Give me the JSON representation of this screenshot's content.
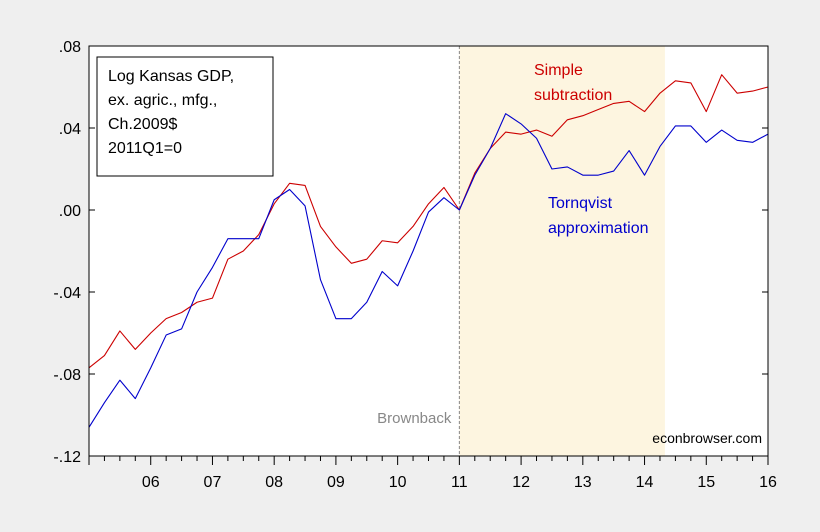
{
  "chart_data": {
    "type": "line",
    "x_unit": "quarter",
    "xlim": [
      "2005Q1",
      "2016Q1"
    ],
    "ylim": [
      -0.12,
      0.08
    ],
    "y_ticks": [
      ".08",
      ".04",
      ".00",
      "-.04",
      "-.08",
      "-.12"
    ],
    "y_tick_values": [
      0.08,
      0.04,
      0.0,
      -0.04,
      -0.08,
      -0.12
    ],
    "x_tick_labels": [
      "06",
      "07",
      "08",
      "09",
      "10",
      "11",
      "12",
      "13",
      "14",
      "15",
      "16"
    ],
    "x_tick_values": [
      2006,
      2007,
      2008,
      2009,
      2010,
      2011,
      2012,
      2013,
      2014,
      2015,
      2016
    ],
    "box_lines": [
      "Log Kansas GDP,",
      "ex. agric., mfg.,",
      "Ch.2009$",
      "2011Q1=0"
    ],
    "shade": {
      "from": "2011Q1",
      "to": "2014Q2",
      "color": "#fdf5e0"
    },
    "vline": {
      "at": "2011Q1",
      "label": "Brownback"
    },
    "watermark": "econbrowser.com",
    "colors": {
      "simple": "#cc0000",
      "tornqvist": "#0000cc",
      "vline": "#888888"
    },
    "x": [
      "2005Q1",
      "2005Q2",
      "2005Q3",
      "2005Q4",
      "2006Q1",
      "2006Q2",
      "2006Q3",
      "2006Q4",
      "2007Q1",
      "2007Q2",
      "2007Q3",
      "2007Q4",
      "2008Q1",
      "2008Q2",
      "2008Q3",
      "2008Q4",
      "2009Q1",
      "2009Q2",
      "2009Q3",
      "2009Q4",
      "2010Q1",
      "2010Q2",
      "2010Q3",
      "2010Q4",
      "2011Q1",
      "2011Q2",
      "2011Q3",
      "2011Q4",
      "2012Q1",
      "2012Q2",
      "2012Q3",
      "2012Q4",
      "2013Q1",
      "2013Q2",
      "2013Q3",
      "2013Q4",
      "2014Q1",
      "2014Q2",
      "2014Q3",
      "2014Q4",
      "2015Q1",
      "2015Q2",
      "2015Q3",
      "2015Q4",
      "2016Q1"
    ],
    "series": [
      {
        "name": "Simple subtraction",
        "label_lines": [
          "Simple",
          "subtraction"
        ],
        "values": [
          -0.077,
          -0.071,
          -0.059,
          -0.068,
          -0.06,
          -0.053,
          -0.05,
          -0.045,
          -0.043,
          -0.024,
          -0.02,
          -0.012,
          0.003,
          0.013,
          0.012,
          -0.008,
          -0.018,
          -0.026,
          -0.024,
          -0.015,
          -0.016,
          -0.008,
          0.003,
          0.011,
          0.0,
          0.018,
          0.03,
          0.038,
          0.037,
          0.039,
          0.036,
          0.044,
          0.046,
          0.049,
          0.052,
          0.053,
          0.048,
          0.057,
          0.063,
          0.062,
          0.048,
          0.066,
          0.057,
          0.058,
          0.06
        ]
      },
      {
        "name": "Tornqvist approximation",
        "label_lines": [
          "Tornqvist",
          "approximation"
        ],
        "values": [
          -0.106,
          -0.094,
          -0.083,
          -0.092,
          -0.077,
          -0.061,
          -0.058,
          -0.04,
          -0.028,
          -0.014,
          -0.014,
          -0.014,
          0.005,
          0.01,
          0.002,
          -0.034,
          -0.053,
          -0.053,
          -0.045,
          -0.03,
          -0.037,
          -0.02,
          -0.001,
          0.006,
          0.0,
          0.017,
          0.03,
          0.047,
          0.042,
          0.035,
          0.02,
          0.021,
          0.017,
          0.017,
          0.019,
          0.029,
          0.017,
          0.031,
          0.041,
          0.041,
          0.033,
          0.039,
          0.034,
          0.033,
          0.037
        ]
      }
    ]
  }
}
